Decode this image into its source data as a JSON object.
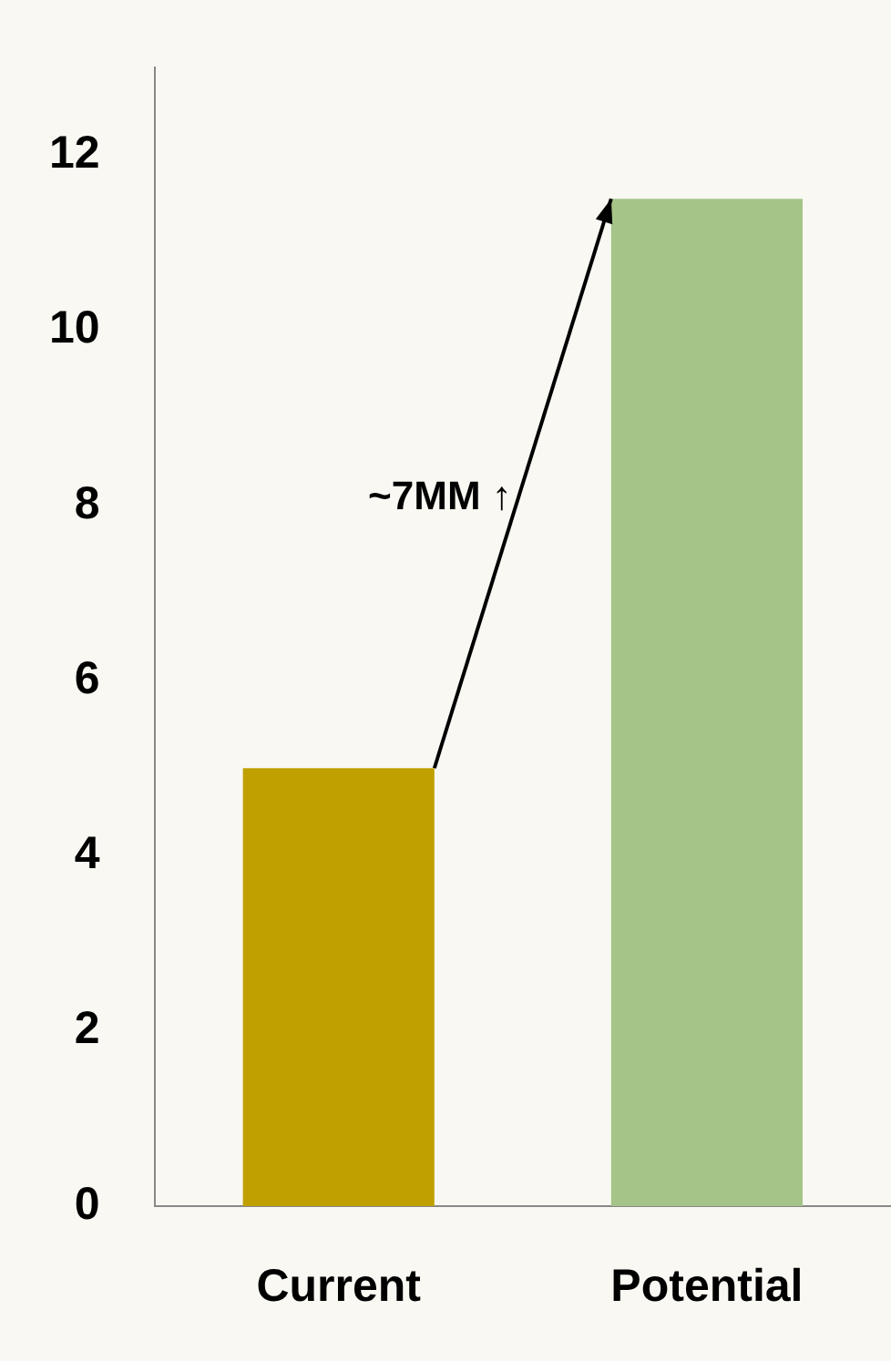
{
  "chart_data": {
    "type": "bar",
    "categories": [
      "Current",
      "Potential"
    ],
    "values": [
      5,
      11.5
    ],
    "colors": [
      "#c0a000",
      "#a4c488"
    ],
    "ylim": [
      0,
      13
    ],
    "yticks": [
      0,
      2,
      4,
      6,
      8,
      10,
      12
    ],
    "grid": false,
    "legend": false,
    "annotations": [
      "~7MM ↑"
    ]
  }
}
